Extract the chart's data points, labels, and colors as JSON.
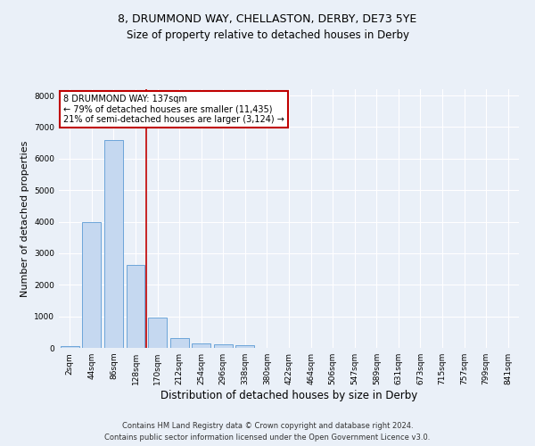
{
  "title_line1": "8, DRUMMOND WAY, CHELLASTON, DERBY, DE73 5YE",
  "title_line2": "Size of property relative to detached houses in Derby",
  "xlabel": "Distribution of detached houses by size in Derby",
  "ylabel": "Number of detached properties",
  "bar_labels": [
    "2sqm",
    "44sqm",
    "86sqm",
    "128sqm",
    "170sqm",
    "212sqm",
    "254sqm",
    "296sqm",
    "338sqm",
    "380sqm",
    "422sqm",
    "464sqm",
    "506sqm",
    "547sqm",
    "589sqm",
    "631sqm",
    "673sqm",
    "715sqm",
    "757sqm",
    "799sqm",
    "841sqm"
  ],
  "bar_values": [
    70,
    3980,
    6600,
    2620,
    950,
    310,
    130,
    100,
    80,
    0,
    0,
    0,
    0,
    0,
    0,
    0,
    0,
    0,
    0,
    0,
    0
  ],
  "bar_color": "#c5d8f0",
  "bar_edge_color": "#5b9bd5",
  "vline_x": 3.5,
  "vline_color": "#c00000",
  "ylim": [
    0,
    8200
  ],
  "yticks": [
    0,
    1000,
    2000,
    3000,
    4000,
    5000,
    6000,
    7000,
    8000
  ],
  "annotation_text": "8 DRUMMOND WAY: 137sqm\n← 79% of detached houses are smaller (11,435)\n21% of semi-detached houses are larger (3,124) →",
  "annotation_box_color": "#ffffff",
  "annotation_box_edge": "#c00000",
  "footer_line1": "Contains HM Land Registry data © Crown copyright and database right 2024.",
  "footer_line2": "Contains public sector information licensed under the Open Government Licence v3.0.",
  "bg_color": "#eaf0f8",
  "plot_bg_color": "#eaf0f8",
  "grid_color": "#ffffff",
  "title_fontsize": 9,
  "subtitle_fontsize": 8.5,
  "tick_fontsize": 6.5,
  "ylabel_fontsize": 8,
  "xlabel_fontsize": 8.5,
  "footer_fontsize": 6,
  "annot_fontsize": 7
}
